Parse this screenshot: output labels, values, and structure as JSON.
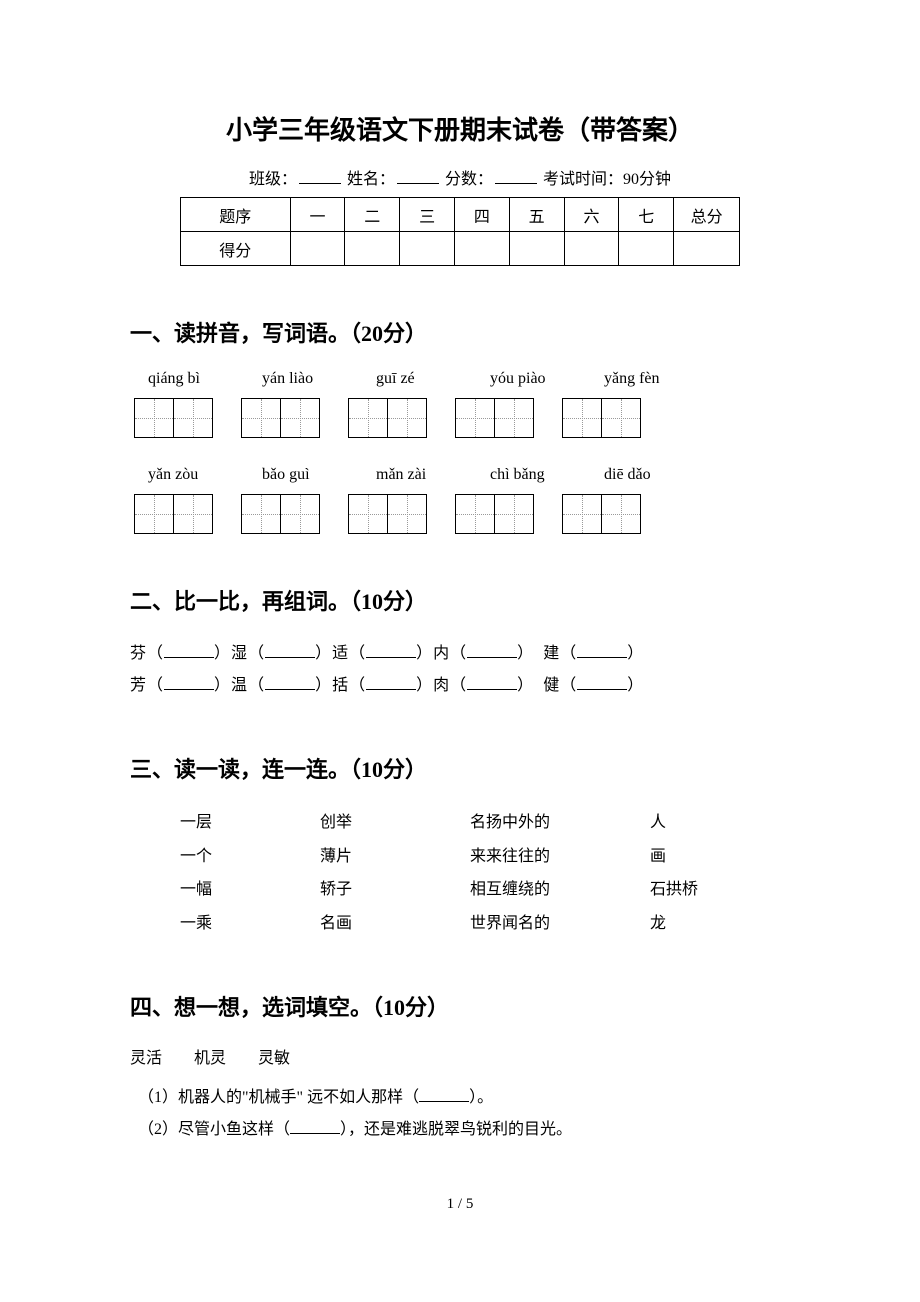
{
  "title": "小学三年级语文下册期末试卷（带答案）",
  "info": {
    "class_label": "班级：",
    "name_label": "姓名：",
    "score_label": "分数：",
    "time_label": "考试时间：90分钟"
  },
  "score_table": {
    "row1": [
      "题序",
      "一",
      "二",
      "三",
      "四",
      "五",
      "六",
      "七",
      "总分"
    ],
    "row2_label": "得分"
  },
  "section1": {
    "heading": "一、读拼音，写词语。（20分）",
    "pinyin_row1": [
      "qiáng bì",
      "yán liào",
      "guī zé",
      "yóu piào",
      "yǎng fèn"
    ],
    "pinyin_row2": [
      "yǎn zòu",
      "bǎo guì",
      "mǎn zài",
      "chì bǎng",
      "diē dǎo"
    ]
  },
  "section2": {
    "heading": "二、比一比，再组词。（10分）",
    "line1": {
      "c1": "芬",
      "c2": "湿",
      "c3": "适",
      "c4": "内",
      "c5": "建"
    },
    "line2": {
      "c1": "芳",
      "c2": "温",
      "c3": "括",
      "c4": "肉",
      "c5": "健"
    }
  },
  "section3": {
    "heading": "三、读一读，连一连。（10分）",
    "rows": [
      {
        "a": "一层",
        "b": "创举",
        "c": "名扬中外的",
        "d": "人"
      },
      {
        "a": "一个",
        "b": "薄片",
        "c": "来来往往的",
        "d": "画"
      },
      {
        "a": "一幅",
        "b": "轿子",
        "c": "相互缠绕的",
        "d": "石拱桥"
      },
      {
        "a": "一乘",
        "b": "名画",
        "c": "世界闻名的",
        "d": "龙"
      }
    ]
  },
  "section4": {
    "heading": "四、想一想，选词填空。（10分）",
    "words": "灵活　　机灵　　灵敏",
    "items": [
      "（1）机器人的\"机械手\"  远不如人那样（",
      "（2）尽管小鱼这样（"
    ],
    "item1_tail": "）。",
    "item2_tail": "），还是难逃脱翠鸟锐利的目光。"
  },
  "page_num": "1 / 5",
  "colors": {
    "text": "#000000",
    "background": "#ffffff",
    "dotted": "#999999"
  }
}
